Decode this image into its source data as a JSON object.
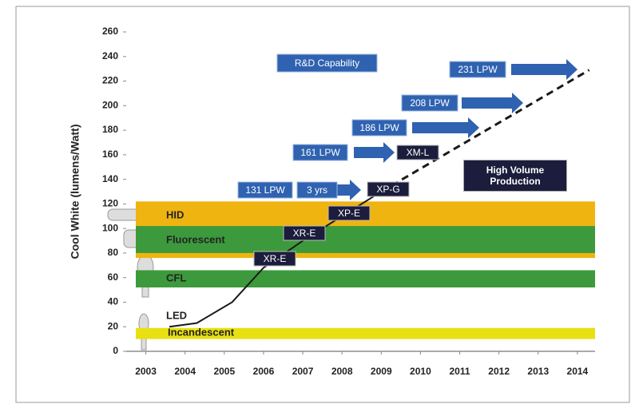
{
  "chart_data": {
    "type": "line",
    "y_label": "Cool White (lumens/Watt)",
    "xlim": [
      2002.5,
      2014.45
    ],
    "xticks": [
      2003,
      2004,
      2005,
      2006,
      2007,
      2008,
      2009,
      2010,
      2011,
      2012,
      2013,
      2014
    ],
    "ylim": [
      0,
      260
    ],
    "yticks": [
      0,
      20,
      40,
      60,
      80,
      100,
      120,
      140,
      160,
      180,
      200,
      220,
      240,
      260
    ],
    "bands": [
      {
        "name": "HID",
        "range": [
          76,
          122
        ],
        "color": "#f0b410"
      },
      {
        "name": "Fluorescent",
        "range": [
          80,
          102
        ],
        "color": "#3c9a3c"
      },
      {
        "name": "CFL",
        "range": [
          52,
          66
        ],
        "color": "#3c9a3c"
      },
      {
        "name": "Incandescent",
        "range": [
          10,
          19
        ],
        "color": "#e8e010"
      }
    ],
    "series": [
      {
        "color": "#1a1a1a",
        "x": [
          2003.6,
          2004.3,
          2005.2,
          2006,
          2007,
          2008,
          2009
        ],
        "values": [
          20,
          23,
          40,
          68,
          90,
          110,
          130
        ]
      },
      {
        "color": "#1a1a1a",
        "dashed": true,
        "x": [
          2009,
          2014.3
        ],
        "values": [
          130,
          229
        ]
      }
    ],
    "led_label": "LED",
    "rd_label": "R&D Capability",
    "high_volume": "High Volume Production",
    "lpw": [
      "131 LPW",
      "3 yrs",
      "161 LPW",
      "186 LPW",
      "208 LPW",
      "231 LPW"
    ],
    "products": [
      "XR-E",
      "XR-E",
      "XP-E",
      "XP-G",
      "XM-L"
    ]
  }
}
